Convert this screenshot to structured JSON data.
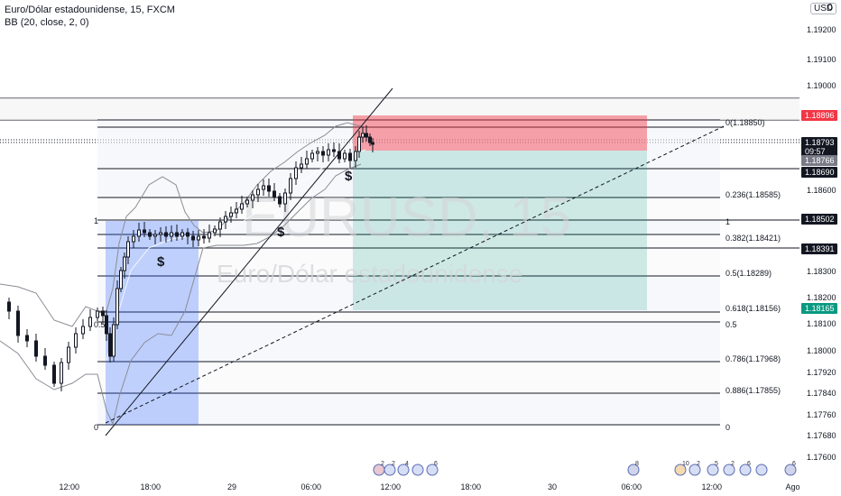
{
  "header": {
    "symbol_line": "Euro/Dólar estadounidense, 15, FXCM",
    "indicator_line": "BB (20, close, 2, 0)"
  },
  "currency_badge": "USD",
  "currency_zero": "0",
  "watermark": {
    "symbol": "EURUSD, 15",
    "name": "Euro/Dólar estadounidense"
  },
  "chart_data": {
    "type": "candlestick",
    "price_axis": {
      "ticks": [
        "1.19200",
        "1.19100",
        "1.19000",
        "1.18600",
        "1.18300",
        "1.18200",
        "1.18100",
        "1.18000",
        "1.17920",
        "1.17840",
        "1.17760",
        "1.17680",
        "1.17600"
      ]
    },
    "time_axis": {
      "ticks": [
        "12:00",
        "18:00",
        "29",
        "06:00",
        "12:00",
        "18:00",
        "30",
        "06:00",
        "12:00",
        "Ago"
      ]
    },
    "price_labels": [
      {
        "value": "1.18896",
        "kind": "stop"
      },
      {
        "value": "1.18793",
        "kind": "last"
      },
      {
        "value": "09:57",
        "kind": "countdown"
      },
      {
        "value": "1.18766",
        "kind": "bb"
      },
      {
        "value": "1.18690",
        "kind": "line"
      },
      {
        "value": "1.18502",
        "kind": "line"
      },
      {
        "value": "1.18391",
        "kind": "line"
      },
      {
        "value": "1.18165",
        "kind": "target"
      }
    ],
    "fib_levels": [
      {
        "label": "0(1.18850)"
      },
      {
        "label": "0.236(1.18585)"
      },
      {
        "label": "1"
      },
      {
        "label": "0.382(1.18421)"
      },
      {
        "label": "0.5(1.18289)"
      },
      {
        "label": "0.618(1.18156)"
      },
      {
        "label": "0.5"
      },
      {
        "label": "0.786(1.17968)"
      },
      {
        "label": "0.886(1.17855)"
      },
      {
        "label": "0"
      }
    ],
    "left_fib_labels": [
      "1",
      "0.5",
      "0"
    ],
    "annotations": [
      "$",
      "$",
      "$"
    ],
    "event_counts": [
      "2",
      "2",
      "4",
      "6",
      "8",
      "10",
      "2",
      "5",
      "2",
      "6",
      "6"
    ],
    "colors": {
      "up": "#131722",
      "down": "#131722",
      "stop_zone": "#f23645",
      "target_zone": "#089981",
      "blue_zone": "#2962ff"
    }
  }
}
